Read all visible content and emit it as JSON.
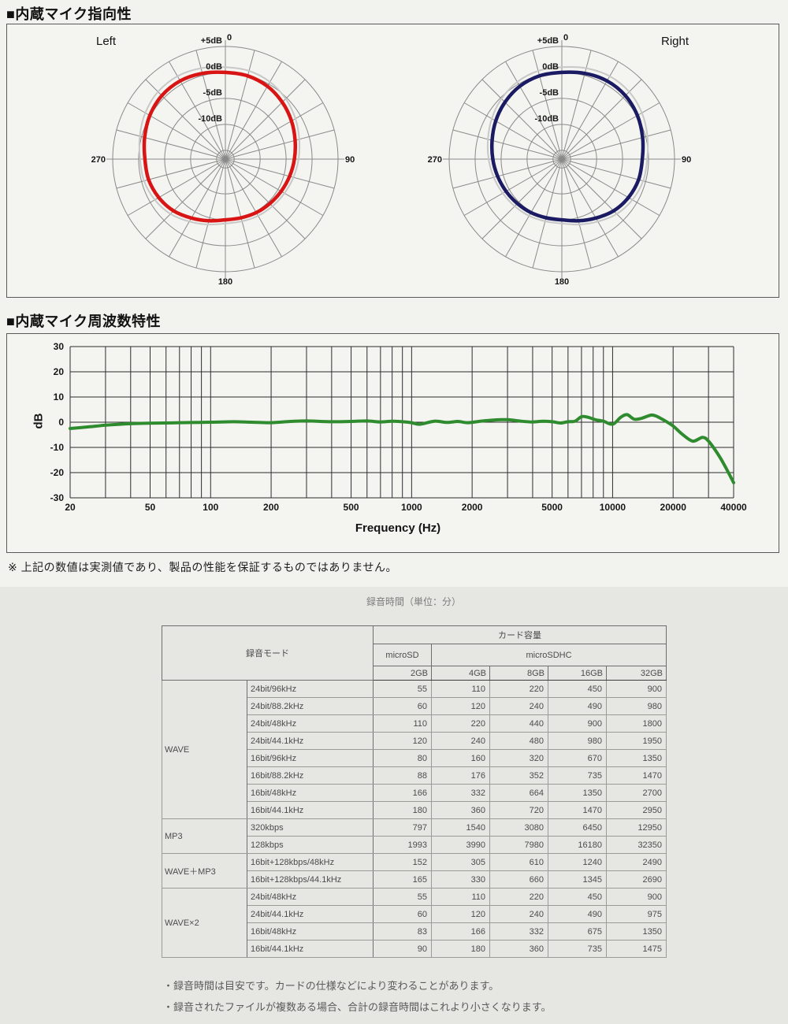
{
  "page": {
    "section1_title": "■内蔵マイク指向性",
    "section2_title": "■内蔵マイク周波数特性",
    "note": "※ 上記の数値は実測値であり、製品の性能を保証するものではありません。"
  },
  "chart_data": [
    {
      "type": "polar",
      "title": "Left",
      "color": "#d81414",
      "ghost_color": "#c8c8c8",
      "db_outer_ring": 5,
      "db_at_center": -16.7,
      "rings_db": [
        5,
        0,
        -5,
        -10,
        -15
      ],
      "ring_label_dbs": [
        5,
        0,
        -5,
        -10
      ],
      "ring_labels": [
        "+5dB",
        "0dB",
        "-5dB",
        "-10dB"
      ],
      "spokes": 24,
      "angle_labels": {
        "top": "0",
        "right": "90",
        "bottom": "180",
        "left": "270"
      },
      "points_deg_db": [
        [
          0,
          0
        ],
        [
          15,
          -0.1
        ],
        [
          30,
          -0.5
        ],
        [
          45,
          -1.2
        ],
        [
          60,
          -2.0
        ],
        [
          75,
          -2.8
        ],
        [
          90,
          -3.4
        ],
        [
          105,
          -3.9
        ],
        [
          120,
          -4.3
        ],
        [
          135,
          -4.6
        ],
        [
          150,
          -4.8
        ],
        [
          165,
          -5.0
        ],
        [
          180,
          -5.0
        ],
        [
          195,
          -4.4
        ],
        [
          210,
          -3.6
        ],
        [
          225,
          -2.6
        ],
        [
          240,
          -1.9
        ],
        [
          255,
          -1.4
        ],
        [
          270,
          -1.2
        ],
        [
          285,
          -0.6
        ],
        [
          300,
          0.1
        ],
        [
          315,
          0.6
        ],
        [
          330,
          0.7
        ],
        [
          345,
          0.4
        ]
      ]
    },
    {
      "type": "polar",
      "title": "Right",
      "color": "#1a1b63",
      "ghost_color": "#c8c8c8",
      "db_outer_ring": 5,
      "db_at_center": -16.7,
      "rings_db": [
        5,
        0,
        -5,
        -10,
        -15
      ],
      "ring_label_dbs": [
        5,
        0,
        -5,
        -10
      ],
      "ring_labels": [
        "+5dB",
        "0dB",
        "-5dB",
        "-10dB"
      ],
      "spokes": 24,
      "angle_labels": {
        "top": "0",
        "right": "90",
        "bottom": "180",
        "left": "270"
      },
      "points_deg_db": [
        [
          0,
          0
        ],
        [
          15,
          0.4
        ],
        [
          30,
          0.7
        ],
        [
          45,
          0.6
        ],
        [
          60,
          0.1
        ],
        [
          75,
          -0.6
        ],
        [
          90,
          -1.2
        ],
        [
          105,
          -1.4
        ],
        [
          120,
          -1.9
        ],
        [
          135,
          -2.6
        ],
        [
          150,
          -3.6
        ],
        [
          165,
          -4.4
        ],
        [
          180,
          -5.0
        ],
        [
          195,
          -5.0
        ],
        [
          210,
          -4.8
        ],
        [
          225,
          -4.6
        ],
        [
          240,
          -4.3
        ],
        [
          255,
          -3.9
        ],
        [
          270,
          -3.4
        ],
        [
          285,
          -2.8
        ],
        [
          300,
          -2.0
        ],
        [
          315,
          -1.2
        ],
        [
          330,
          -0.5
        ],
        [
          345,
          -0.1
        ]
      ]
    },
    {
      "type": "line",
      "xlabel": "Frequency (Hz)",
      "ylabel": "dB",
      "color": "#2e8b2e",
      "x_scale": "log",
      "xlim": [
        20,
        40000
      ],
      "ylim": [
        -30,
        30
      ],
      "x_ticks": [
        20,
        50,
        100,
        200,
        500,
        1000,
        2000,
        5000,
        10000,
        20000,
        40000
      ],
      "y_ticks": [
        30,
        20,
        10,
        0,
        -10,
        -20,
        -30
      ],
      "grid": true,
      "points_hz_db": [
        [
          20,
          -2.5
        ],
        [
          25,
          -1.8
        ],
        [
          30,
          -1.2
        ],
        [
          40,
          -0.6
        ],
        [
          50,
          -0.4
        ],
        [
          70,
          -0.2
        ],
        [
          100,
          0
        ],
        [
          130,
          0.2
        ],
        [
          160,
          0
        ],
        [
          200,
          -0.2
        ],
        [
          250,
          0.3
        ],
        [
          300,
          0.5
        ],
        [
          400,
          0.2
        ],
        [
          500,
          0.3
        ],
        [
          600,
          0.5
        ],
        [
          700,
          0.1
        ],
        [
          800,
          0.4
        ],
        [
          900,
          0.2
        ],
        [
          1000,
          -0.2
        ],
        [
          1100,
          -0.8
        ],
        [
          1300,
          0.4
        ],
        [
          1500,
          -0.1
        ],
        [
          1700,
          0.3
        ],
        [
          1900,
          -0.2
        ],
        [
          2200,
          0.4
        ],
        [
          2600,
          0.9
        ],
        [
          3000,
          1.0
        ],
        [
          3500,
          0.4
        ],
        [
          4000,
          0.1
        ],
        [
          4500,
          0.4
        ],
        [
          5000,
          0.2
        ],
        [
          5500,
          -0.3
        ],
        [
          6000,
          0.2
        ],
        [
          6500,
          0.4
        ],
        [
          7000,
          2.2
        ],
        [
          7500,
          2.0
        ],
        [
          8200,
          1.0
        ],
        [
          9000,
          0.4
        ],
        [
          10000,
          -0.8
        ],
        [
          11000,
          2.0
        ],
        [
          11800,
          3.0
        ],
        [
          12800,
          1.2
        ],
        [
          14000,
          1.6
        ],
        [
          15500,
          2.8
        ],
        [
          16500,
          2.4
        ],
        [
          18000,
          0.8
        ],
        [
          20000,
          -1.5
        ],
        [
          22000,
          -4.5
        ],
        [
          25000,
          -7.5
        ],
        [
          28000,
          -6.0
        ],
        [
          30000,
          -7.5
        ],
        [
          33000,
          -12
        ],
        [
          36000,
          -17
        ],
        [
          40000,
          -24
        ]
      ]
    }
  ],
  "table": {
    "caption": "録音時間（単位：分）",
    "header": {
      "mode": "録音モード",
      "card_capacity": "カード容量",
      "microsd": "microSD",
      "microsdhc": "microSDHC",
      "sizes": [
        "2GB",
        "4GB",
        "8GB",
        "16GB",
        "32GB"
      ]
    },
    "groups": [
      {
        "name": "WAVE",
        "rows": [
          {
            "mode": "24bit/96kHz",
            "values": [
              55,
              110,
              220,
              450,
              900
            ]
          },
          {
            "mode": "24bit/88.2kHz",
            "values": [
              60,
              120,
              240,
              490,
              980
            ]
          },
          {
            "mode": "24bit/48kHz",
            "values": [
              110,
              220,
              440,
              900,
              1800
            ]
          },
          {
            "mode": "24bit/44.1kHz",
            "values": [
              120,
              240,
              480,
              980,
              1950
            ]
          },
          {
            "mode": "16bit/96kHz",
            "values": [
              80,
              160,
              320,
              670,
              1350
            ]
          },
          {
            "mode": "16bit/88.2kHz",
            "values": [
              88,
              176,
              352,
              735,
              1470
            ]
          },
          {
            "mode": "16bit/48kHz",
            "values": [
              166,
              332,
              664,
              1350,
              2700
            ]
          },
          {
            "mode": "16bit/44.1kHz",
            "values": [
              180,
              360,
              720,
              1470,
              2950
            ]
          }
        ]
      },
      {
        "name": "MP3",
        "rows": [
          {
            "mode": "320kbps",
            "values": [
              797,
              1540,
              3080,
              6450,
              12950
            ]
          },
          {
            "mode": "128kbps",
            "values": [
              1993,
              3990,
              7980,
              16180,
              32350
            ]
          }
        ]
      },
      {
        "name": "WAVE＋MP3",
        "rows": [
          {
            "mode": "16bit+128kbps/48kHz",
            "values": [
              152,
              305,
              610,
              1240,
              2490
            ]
          },
          {
            "mode": "16bit+128kbps/44.1kHz",
            "values": [
              165,
              330,
              660,
              1345,
              2690
            ]
          }
        ]
      },
      {
        "name": "WAVE×2",
        "rows": [
          {
            "mode": "24bit/48kHz",
            "values": [
              55,
              110,
              220,
              450,
              900
            ]
          },
          {
            "mode": "24bit/44.1kHz",
            "values": [
              60,
              120,
              240,
              490,
              975
            ]
          },
          {
            "mode": "16bit/48kHz",
            "values": [
              83,
              166,
              332,
              675,
              1350
            ]
          },
          {
            "mode": "16bit/44.1kHz",
            "values": [
              90,
              180,
              360,
              735,
              1475
            ]
          }
        ]
      }
    ]
  },
  "footnotes": [
    "・録音時間は目安です。カードの仕様などにより変わることがあります。",
    "・録音されたファイルが複数ある場合、合計の録音時間はこれより小さくなります。"
  ]
}
